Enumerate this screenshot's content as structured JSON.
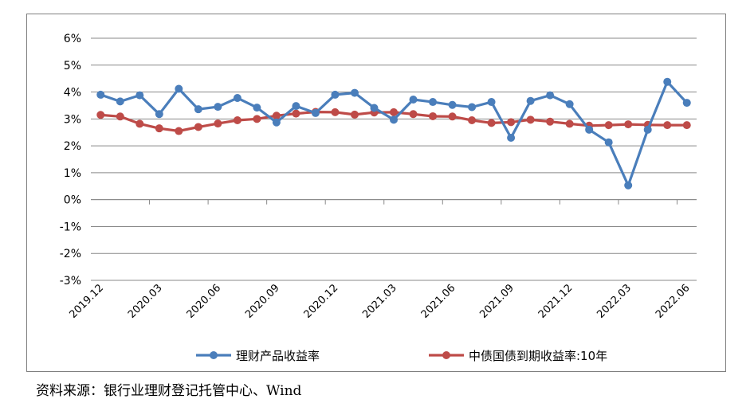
{
  "chart_data": {
    "type": "line",
    "title": "",
    "xlabel": "",
    "ylabel": "",
    "ylim": [
      -3,
      6
    ],
    "ytick_labels": [
      "6%",
      "5%",
      "4%",
      "3%",
      "2%",
      "1%",
      "0%",
      "-1%",
      "-2%",
      "-3%"
    ],
    "yticks": [
      6,
      5,
      4,
      3,
      2,
      1,
      0,
      -1,
      -2,
      -3
    ],
    "xtick_labels": [
      "2019.12",
      "2020.03",
      "2020.06",
      "2020.09",
      "2020.12",
      "2021.03",
      "2021.06",
      "2021.09",
      "2021.12",
      "2022.03",
      "2022.06"
    ],
    "xtick_indices": [
      0,
      3,
      6,
      9,
      12,
      15,
      18,
      21,
      24,
      27,
      30
    ],
    "grid": true,
    "legend_position": "bottom",
    "series": [
      {
        "name": "理财产品收益率",
        "color": "#4a7ebb",
        "values": [
          3.9,
          3.65,
          3.88,
          3.18,
          4.12,
          3.36,
          3.45,
          3.78,
          3.42,
          2.87,
          3.48,
          3.22,
          3.9,
          3.97,
          3.41,
          2.97,
          3.72,
          3.63,
          3.52,
          3.44,
          3.63,
          2.3,
          3.67,
          3.88,
          3.55,
          2.6,
          2.13,
          0.53,
          2.6,
          4.38,
          3.6
        ]
      },
      {
        "name": "中债国债到期收益率:10年",
        "color": "#be4b48",
        "values": [
          3.15,
          3.09,
          2.82,
          2.65,
          2.55,
          2.7,
          2.83,
          2.95,
          3.0,
          3.12,
          3.2,
          3.26,
          3.25,
          3.16,
          3.24,
          3.25,
          3.18,
          3.1,
          3.09,
          2.95,
          2.85,
          2.88,
          2.97,
          2.9,
          2.82,
          2.75,
          2.77,
          2.8,
          2.78,
          2.77,
          2.77
        ]
      }
    ]
  },
  "source_note": "资料来源：银行业理财登记托管中心、Wind"
}
